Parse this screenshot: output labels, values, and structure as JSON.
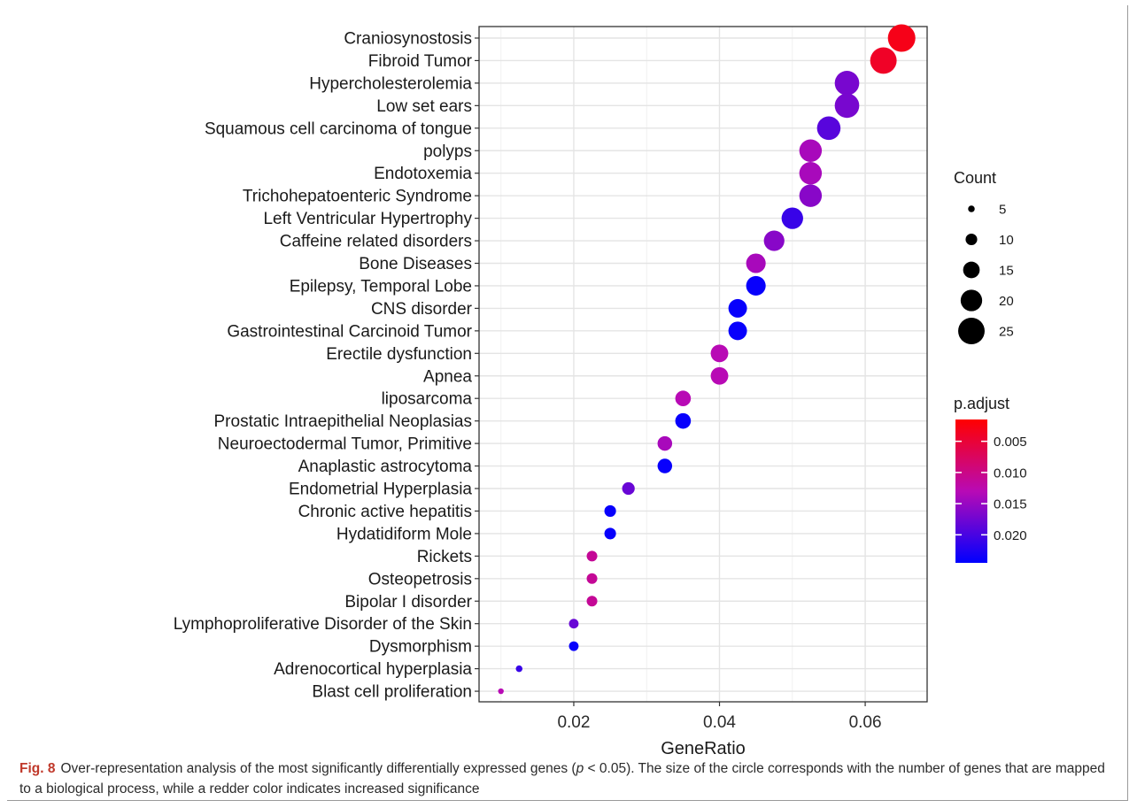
{
  "chart_data": {
    "type": "scatter",
    "xlabel": "GeneRatio",
    "ylabel": "",
    "xlim": [
      0.007,
      0.0685
    ],
    "x_ticks": [
      "0.02",
      "0.04",
      "0.06"
    ],
    "x_tick_values": [
      0.02,
      0.04,
      0.06
    ],
    "grid": true,
    "categories": [
      "Craniosynostosis",
      "Fibroid Tumor",
      "Hypercholesterolemia",
      "Low set ears",
      "Squamous cell carcinoma of tongue",
      "polyps",
      "Endotoxemia",
      "Trichohepatoenteric Syndrome",
      "Left Ventricular Hypertrophy",
      "Caffeine related disorders",
      "Bone Diseases",
      "Epilepsy, Temporal Lobe",
      "CNS disorder",
      "Gastrointestinal Carcinoid Tumor",
      "Erectile dysfunction",
      "Apnea",
      "liposarcoma",
      "Prostatic Intraepithelial Neoplasias",
      "Neuroectodermal Tumor, Primitive",
      "Anaplastic astrocytoma",
      "Endometrial Hyperplasia",
      "Chronic active hepatitis",
      "Hydatidiform Mole",
      "Rickets",
      "Osteopetrosis",
      "Bipolar I disorder",
      "Lymphoproliferative Disorder of the Skin",
      "Dysmorphism",
      "Adrenocortical hyperplasia",
      "Blast cell proliferation"
    ],
    "gene_ratio": [
      0.065,
      0.0625,
      0.0575,
      0.0575,
      0.055,
      0.0525,
      0.0525,
      0.0525,
      0.05,
      0.0475,
      0.045,
      0.045,
      0.0425,
      0.0425,
      0.04,
      0.04,
      0.035,
      0.035,
      0.0325,
      0.0325,
      0.0275,
      0.025,
      0.025,
      0.0225,
      0.0225,
      0.0225,
      0.02,
      0.02,
      0.0125,
      0.01
    ],
    "count": [
      26,
      25,
      23,
      23,
      22,
      21,
      21,
      21,
      20,
      19,
      18,
      18,
      17,
      17,
      16,
      16,
      14,
      14,
      13,
      13,
      11,
      10,
      10,
      9,
      9,
      9,
      8,
      8,
      5,
      4
    ],
    "p_adjust": [
      0.003,
      0.004,
      0.017,
      0.017,
      0.019,
      0.014,
      0.014,
      0.016,
      0.021,
      0.016,
      0.014,
      0.024,
      0.024,
      0.024,
      0.013,
      0.013,
      0.013,
      0.024,
      0.014,
      0.024,
      0.018,
      0.024,
      0.024,
      0.011,
      0.011,
      0.011,
      0.018,
      0.024,
      0.021,
      0.013
    ],
    "legend_count": {
      "title": "Count",
      "values": [
        5,
        10,
        15,
        20,
        25
      ],
      "labels": [
        "5",
        "10",
        "15",
        "20",
        "25"
      ]
    },
    "legend_color": {
      "title": "p.adjust",
      "ticks": [
        0.005,
        0.01,
        0.015,
        0.02
      ],
      "labels": [
        "0.005",
        "0.010",
        "0.015",
        "0.020"
      ],
      "range": [
        0.0015,
        0.0245
      ],
      "low_color": "#ff0000",
      "high_color": "#0000ff"
    }
  },
  "caption": {
    "label": "Fig. 8",
    "text_before": "Over-representation analysis of the most significantly differentially expressed genes (",
    "p_symbol": "p",
    "text_after": " < 0.05). The size of the circle corresponds with the number of genes that are mapped to a biological process, while a redder color indicates increased significance"
  }
}
